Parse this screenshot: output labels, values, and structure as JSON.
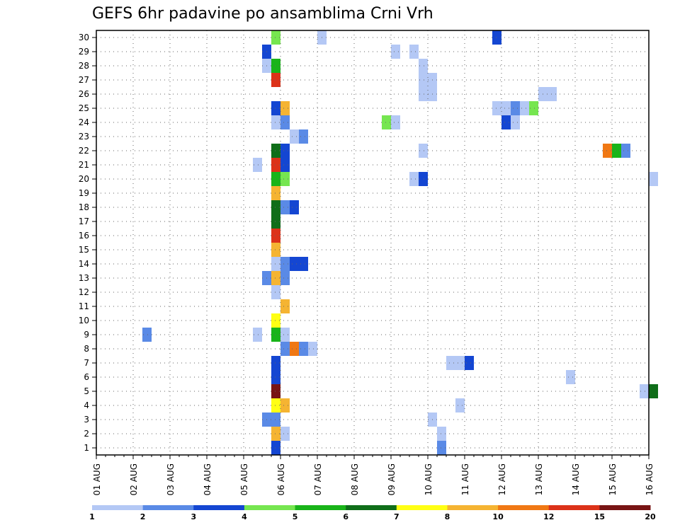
{
  "chart_data": {
    "type": "heatmap",
    "title": "GEFS 6hr padavine po ansamblima Crni Vrh",
    "xlabel": "",
    "ylabel": "",
    "x_ticks": [
      "01 AUG",
      "02 AUG",
      "03 AUG",
      "04 AUG",
      "05 AUG",
      "06 AUG",
      "07 AUG",
      "08 AUG",
      "09 AUG",
      "10 AUG",
      "11 AUG",
      "12 AUG",
      "13 AUG",
      "14 AUG",
      "15 AUG",
      "16 AUG"
    ],
    "y_ticks": [
      "1",
      "2",
      "3",
      "4",
      "5",
      "6",
      "7",
      "8",
      "9",
      "10",
      "11",
      "12",
      "13",
      "14",
      "15",
      "16",
      "17",
      "18",
      "19",
      "20",
      "21",
      "22",
      "23",
      "24",
      "25",
      "26",
      "27",
      "28",
      "29",
      "30"
    ],
    "x_unit": "day (6-hour steps)",
    "xlim": [
      0,
      15
    ],
    "ylim": [
      0.5,
      30.5
    ],
    "grid": true,
    "colorbar": {
      "labels": [
        "1",
        "2",
        "3",
        "4",
        "5",
        "6",
        "7",
        "8",
        "10",
        "12",
        "15",
        "20"
      ],
      "colors": [
        "#b4c8f5",
        "#5a8ae6",
        "#1446d2",
        "#76e650",
        "#19b419",
        "#0f6e19",
        "#ffff14",
        "#f5b432",
        "#f07814",
        "#dc3219",
        "#781414"
      ]
    },
    "cells": [
      {
        "t": 4.75,
        "m": 30,
        "c": 4
      },
      {
        "t": 6.0,
        "m": 30,
        "c": 1
      },
      {
        "t": 10.75,
        "m": 30,
        "c": 3
      },
      {
        "t": 4.5,
        "m": 29,
        "c": 3
      },
      {
        "t": 8.0,
        "m": 29,
        "c": 1
      },
      {
        "t": 8.5,
        "m": 29,
        "c": 1
      },
      {
        "t": 4.5,
        "m": 28,
        "c": 1
      },
      {
        "t": 4.75,
        "m": 28,
        "c": 5
      },
      {
        "t": 8.75,
        "m": 28,
        "c": 1
      },
      {
        "t": 4.75,
        "m": 27,
        "c": 10
      },
      {
        "t": 8.75,
        "m": 27,
        "c": 1
      },
      {
        "t": 9.0,
        "m": 27,
        "c": 1
      },
      {
        "t": 8.75,
        "m": 26,
        "c": 1
      },
      {
        "t": 9.0,
        "m": 26,
        "c": 1
      },
      {
        "t": 12.0,
        "m": 26,
        "c": 1
      },
      {
        "t": 12.25,
        "m": 26,
        "c": 1
      },
      {
        "t": 4.75,
        "m": 25,
        "c": 3
      },
      {
        "t": 5.0,
        "m": 25,
        "c": 8
      },
      {
        "t": 10.75,
        "m": 25,
        "c": 1
      },
      {
        "t": 11.0,
        "m": 25,
        "c": 1
      },
      {
        "t": 11.25,
        "m": 25,
        "c": 2
      },
      {
        "t": 11.5,
        "m": 25,
        "c": 1
      },
      {
        "t": 11.75,
        "m": 25,
        "c": 4
      },
      {
        "t": 4.75,
        "m": 24,
        "c": 1
      },
      {
        "t": 5.0,
        "m": 24,
        "c": 2
      },
      {
        "t": 7.75,
        "m": 24,
        "c": 4
      },
      {
        "t": 8.0,
        "m": 24,
        "c": 1
      },
      {
        "t": 11.0,
        "m": 24,
        "c": 3
      },
      {
        "t": 11.25,
        "m": 24,
        "c": 1
      },
      {
        "t": 5.25,
        "m": 23,
        "c": 1
      },
      {
        "t": 5.5,
        "m": 23,
        "c": 2
      },
      {
        "t": 4.75,
        "m": 22,
        "c": 6
      },
      {
        "t": 5.0,
        "m": 22,
        "c": 3
      },
      {
        "t": 8.75,
        "m": 22,
        "c": 1
      },
      {
        "t": 13.75,
        "m": 22,
        "c": 9
      },
      {
        "t": 14.0,
        "m": 22,
        "c": 5
      },
      {
        "t": 14.25,
        "m": 22,
        "c": 2
      },
      {
        "t": 4.25,
        "m": 21,
        "c": 1
      },
      {
        "t": 4.75,
        "m": 21,
        "c": 10
      },
      {
        "t": 5.0,
        "m": 21,
        "c": 3
      },
      {
        "t": 4.75,
        "m": 20,
        "c": 5
      },
      {
        "t": 5.0,
        "m": 20,
        "c": 4
      },
      {
        "t": 8.5,
        "m": 20,
        "c": 1
      },
      {
        "t": 8.75,
        "m": 20,
        "c": 3
      },
      {
        "t": 15.0,
        "m": 20,
        "c": 1
      },
      {
        "t": 4.75,
        "m": 19,
        "c": 8
      },
      {
        "t": 4.75,
        "m": 18,
        "c": 6
      },
      {
        "t": 5.0,
        "m": 18,
        "c": 2
      },
      {
        "t": 5.25,
        "m": 18,
        "c": 3
      },
      {
        "t": 4.75,
        "m": 17,
        "c": 6
      },
      {
        "t": 4.75,
        "m": 16,
        "c": 10
      },
      {
        "t": 4.75,
        "m": 15,
        "c": 8
      },
      {
        "t": 4.75,
        "m": 14,
        "c": 1
      },
      {
        "t": 5.0,
        "m": 14,
        "c": 2
      },
      {
        "t": 5.25,
        "m": 14,
        "c": 3
      },
      {
        "t": 5.5,
        "m": 14,
        "c": 3
      },
      {
        "t": 4.5,
        "m": 13,
        "c": 2
      },
      {
        "t": 4.75,
        "m": 13,
        "c": 8
      },
      {
        "t": 5.0,
        "m": 13,
        "c": 2
      },
      {
        "t": 4.75,
        "m": 12,
        "c": 1
      },
      {
        "t": 5.0,
        "m": 11,
        "c": 8
      },
      {
        "t": 4.75,
        "m": 10,
        "c": 7
      },
      {
        "t": 1.25,
        "m": 9,
        "c": 2
      },
      {
        "t": 4.25,
        "m": 9,
        "c": 1
      },
      {
        "t": 4.75,
        "m": 9,
        "c": 5
      },
      {
        "t": 5.0,
        "m": 9,
        "c": 1
      },
      {
        "t": 5.0,
        "m": 8,
        "c": 2
      },
      {
        "t": 5.25,
        "m": 8,
        "c": 9
      },
      {
        "t": 5.5,
        "m": 8,
        "c": 2
      },
      {
        "t": 5.75,
        "m": 8,
        "c": 1
      },
      {
        "t": 4.75,
        "m": 7,
        "c": 3
      },
      {
        "t": 9.5,
        "m": 7,
        "c": 1
      },
      {
        "t": 9.75,
        "m": 7,
        "c": 1
      },
      {
        "t": 10.0,
        "m": 7,
        "c": 3
      },
      {
        "t": 4.75,
        "m": 6,
        "c": 3
      },
      {
        "t": 12.75,
        "m": 6,
        "c": 1
      },
      {
        "t": 4.75,
        "m": 5,
        "c": 11
      },
      {
        "t": 14.75,
        "m": 5,
        "c": 1
      },
      {
        "t": 15.0,
        "m": 5,
        "c": 6
      },
      {
        "t": 4.75,
        "m": 4,
        "c": 7
      },
      {
        "t": 5.0,
        "m": 4,
        "c": 8
      },
      {
        "t": 9.75,
        "m": 4,
        "c": 1
      },
      {
        "t": 4.5,
        "m": 3,
        "c": 2
      },
      {
        "t": 4.75,
        "m": 3,
        "c": 2
      },
      {
        "t": 9.0,
        "m": 3,
        "c": 1
      },
      {
        "t": 4.75,
        "m": 2,
        "c": 8
      },
      {
        "t": 5.0,
        "m": 2,
        "c": 1
      },
      {
        "t": 9.25,
        "m": 2,
        "c": 1
      },
      {
        "t": 4.75,
        "m": 1,
        "c": 3
      },
      {
        "t": 9.25,
        "m": 1,
        "c": 2
      }
    ]
  }
}
